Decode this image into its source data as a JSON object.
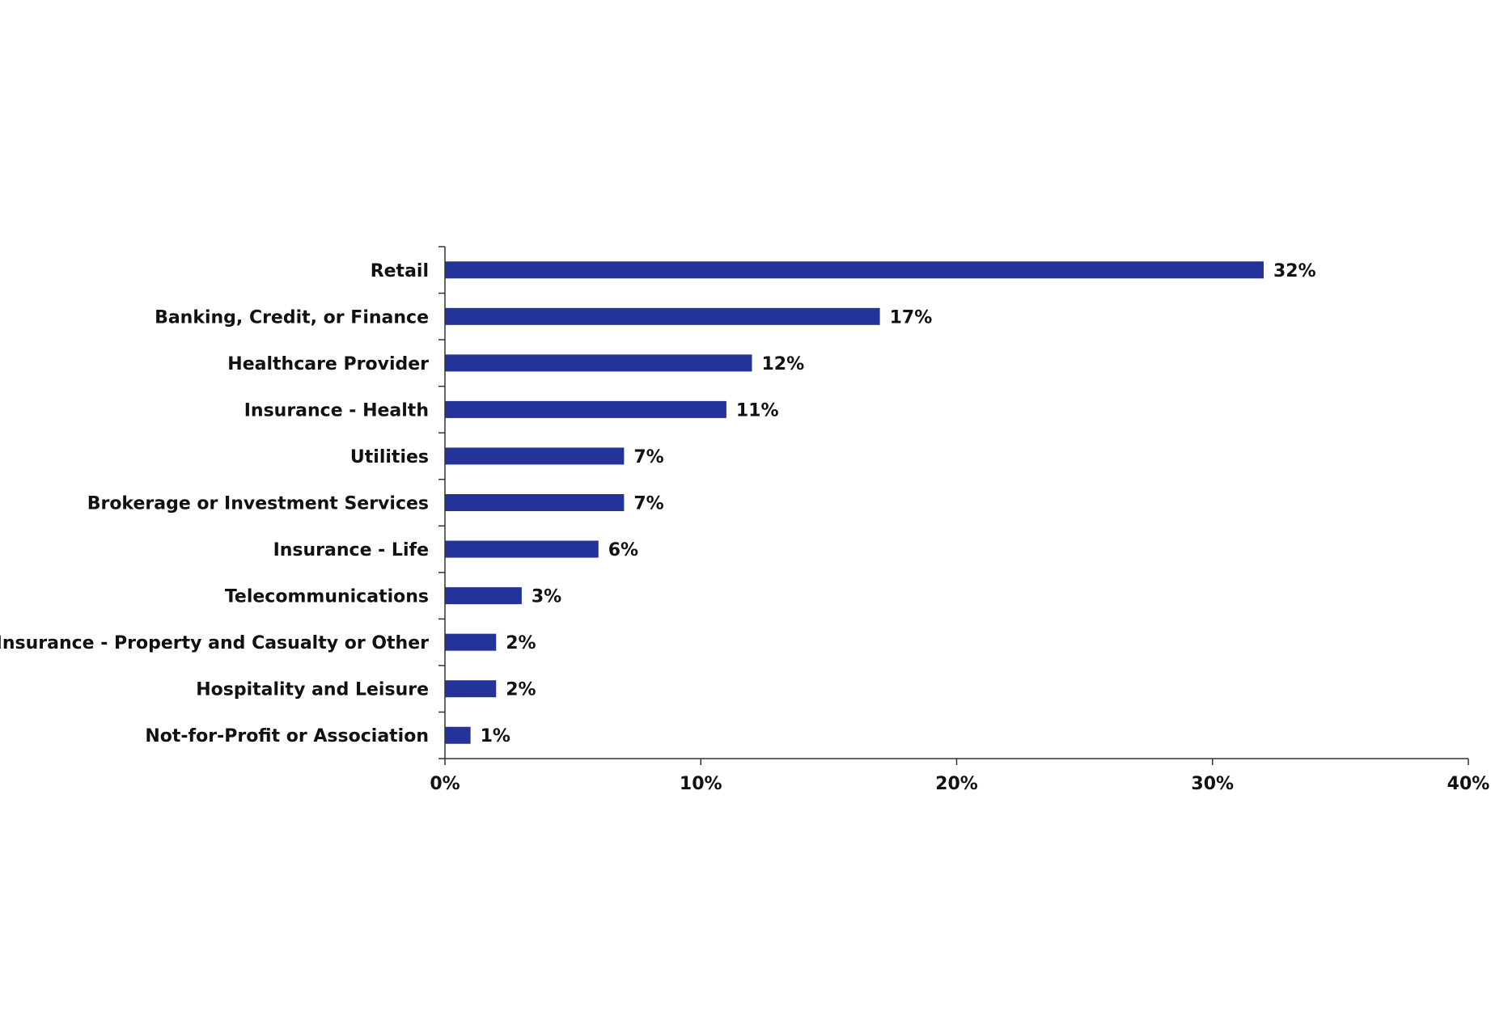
{
  "chart_data": {
    "type": "bar",
    "orientation": "horizontal",
    "categories": [
      "Retail",
      "Banking, Credit, or Finance",
      "Healthcare Provider",
      "Insurance - Health",
      "Utilities",
      "Brokerage or Investment Services",
      "Insurance - Life",
      "Telecommunications",
      "Insurance - Property and Casualty or Other",
      "Hospitality and Leisure",
      "Not-for-Profit or Association"
    ],
    "values": [
      32,
      17,
      12,
      11,
      7,
      7,
      6,
      3,
      2,
      2,
      1
    ],
    "value_labels": [
      "32%",
      "17%",
      "12%",
      "11%",
      "7%",
      "7%",
      "6%",
      "3%",
      "2%",
      "2%",
      "1%"
    ],
    "xlim": [
      0,
      40
    ],
    "x_ticks": [
      0,
      10,
      20,
      30,
      40
    ],
    "x_tick_labels": [
      "0%",
      "10%",
      "20%",
      "30%",
      "40%"
    ],
    "title": "",
    "xlabel": "",
    "ylabel": "",
    "grid": false,
    "colors": {
      "bar": "#24339A",
      "axis": "#333333",
      "text": "#111111"
    }
  }
}
